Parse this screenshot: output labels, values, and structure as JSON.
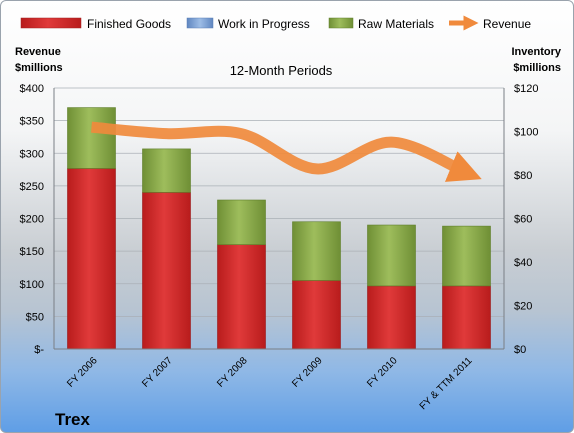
{
  "chart_data": {
    "type": "bar",
    "stacked": true,
    "title": "12-Month Periods",
    "company": "Trex",
    "left_axis_title": [
      "Revenue",
      "$millions"
    ],
    "right_axis_title": [
      "Inventory",
      "$millions"
    ],
    "categories": [
      "FY 2006",
      "FY 2007",
      "FY 2008",
      "FY 2009",
      "FY 2010",
      "FY & TTM 2011"
    ],
    "series": [
      {
        "name": "Finished Goods",
        "axis": "right",
        "color": "#d42a2a",
        "values": [
          83,
          72,
          48,
          31.5,
          29,
          29
        ]
      },
      {
        "name": "Work in Progress",
        "axis": "right",
        "color": "#7fa6d8",
        "values": [
          0,
          0,
          0,
          0,
          0,
          0
        ]
      },
      {
        "name": "Raw Materials",
        "axis": "right",
        "color": "#8fae4f",
        "values": [
          28,
          20,
          20.5,
          27,
          28,
          27.5
        ]
      },
      {
        "name": "Revenue",
        "axis": "left",
        "type": "line",
        "color": "#f08a3c",
        "values": [
          340,
          330,
          330,
          276,
          317,
          270
        ]
      }
    ],
    "left_ticks": [
      "$400",
      "$350",
      "$300",
      "$250",
      "$200",
      "$150",
      "$100",
      "$50",
      "$-"
    ],
    "right_ticks": [
      "$120",
      "$100",
      "$80",
      "$60",
      "$40",
      "$20",
      "$0"
    ],
    "left_ylim": [
      0,
      400
    ],
    "right_ylim": [
      0,
      120
    ],
    "legend_position": "top",
    "grid": true
  }
}
